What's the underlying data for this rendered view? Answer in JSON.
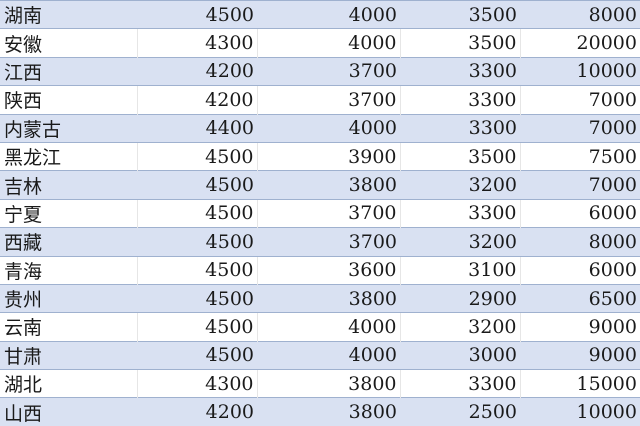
{
  "colors": {
    "band": "#d9e1f2",
    "border": "#9fb1cf"
  },
  "rows": [
    {
      "name": "湖南",
      "values": [
        "4500",
        "4000",
        "3500",
        "8000"
      ]
    },
    {
      "name": "安徽",
      "values": [
        "4300",
        "4000",
        "3500",
        "20000"
      ]
    },
    {
      "name": "江西",
      "values": [
        "4200",
        "3700",
        "3300",
        "10000"
      ]
    },
    {
      "name": "陕西",
      "values": [
        "4200",
        "3700",
        "3300",
        "7000"
      ]
    },
    {
      "name": "内蒙古",
      "values": [
        "4400",
        "4000",
        "3300",
        "7000"
      ]
    },
    {
      "name": "黑龙江",
      "values": [
        "4500",
        "3900",
        "3500",
        "7500"
      ]
    },
    {
      "name": "吉林",
      "values": [
        "4500",
        "3800",
        "3200",
        "7000"
      ]
    },
    {
      "name": "宁夏",
      "values": [
        "4500",
        "3700",
        "3300",
        "6000"
      ]
    },
    {
      "name": "西藏",
      "values": [
        "4500",
        "3700",
        "3200",
        "8000"
      ]
    },
    {
      "name": "青海",
      "values": [
        "4500",
        "3600",
        "3100",
        "6000"
      ]
    },
    {
      "name": "贵州",
      "values": [
        "4500",
        "3800",
        "2900",
        "6500"
      ]
    },
    {
      "name": "云南",
      "values": [
        "4500",
        "4000",
        "3200",
        "9000"
      ]
    },
    {
      "name": "甘肃",
      "values": [
        "4500",
        "4000",
        "3000",
        "9000"
      ]
    },
    {
      "name": "湖北",
      "values": [
        "4300",
        "3800",
        "3300",
        "15000"
      ]
    },
    {
      "name": "山西",
      "values": [
        "4200",
        "3800",
        "2500",
        "10000"
      ]
    }
  ]
}
